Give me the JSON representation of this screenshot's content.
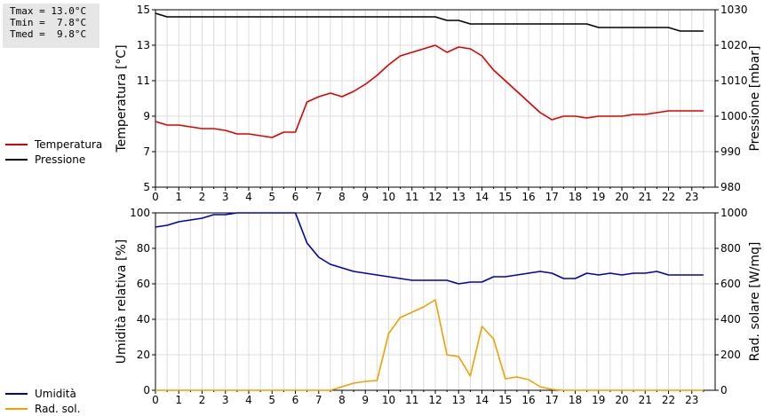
{
  "stats": {
    "tmax": "Tmax = 13.0°C",
    "tmin": "Tmin =  7.8°C",
    "tmed": "Tmed =  9.8°C"
  },
  "chart_data": [
    {
      "type": "line",
      "ylabel_left": "Temperatura [°C]",
      "ylabel_right": "Pressione [mbar]",
      "xlim": [
        0,
        24
      ],
      "ylim_left": [
        5,
        15
      ],
      "ylim_right": [
        980,
        1030
      ],
      "x_ticks": [
        "0",
        "1",
        "2",
        "3",
        "4",
        "5",
        "6",
        "7",
        "8",
        "9",
        "10",
        "11",
        "12",
        "13",
        "14",
        "15",
        "16",
        "17",
        "18",
        "19",
        "20",
        "21",
        "22",
        "23"
      ],
      "y_ticks_left": [
        "5",
        "7",
        "9",
        "11",
        "13",
        "15"
      ],
      "y_ticks_right": [
        "980",
        "990",
        "1000",
        "1010",
        "1020",
        "1030"
      ],
      "grid": true,
      "legend": "left",
      "series": [
        {
          "name": "Temperatura",
          "axis": "left",
          "color": "#dd0000",
          "x": [
            0,
            0.5,
            1,
            1.5,
            2,
            2.5,
            3,
            3.5,
            4,
            4.5,
            5,
            5.5,
            6,
            6.5,
            7,
            7.5,
            8,
            8.5,
            9,
            9.5,
            10,
            10.5,
            11,
            11.5,
            12,
            12.5,
            13,
            13.5,
            14,
            14.5,
            15,
            15.5,
            16,
            16.5,
            17,
            17.5,
            18,
            18.5,
            19,
            19.5,
            20,
            20.5,
            21,
            21.5,
            22,
            22.5,
            23,
            23.5
          ],
          "values": [
            8.7,
            8.5,
            8.5,
            8.4,
            8.3,
            8.3,
            8.2,
            8.0,
            8.0,
            7.9,
            7.8,
            8.1,
            8.1,
            9.8,
            10.1,
            10.3,
            10.1,
            10.4,
            10.8,
            11.3,
            11.9,
            12.4,
            12.6,
            12.8,
            13.0,
            12.6,
            12.9,
            12.8,
            12.4,
            11.6,
            11.0,
            10.4,
            9.8,
            9.2,
            8.8,
            9.0,
            9.0,
            8.9,
            9.0,
            9.0,
            9.0,
            9.1,
            9.1,
            9.2,
            9.3,
            9.3,
            9.3,
            9.3
          ]
        },
        {
          "name": "Pressione",
          "axis": "right",
          "color": "#000000",
          "x": [
            0,
            0.5,
            1,
            2,
            3,
            4,
            5,
            6,
            7,
            8,
            9,
            10,
            11,
            12,
            12.5,
            13,
            13.5,
            14,
            15,
            16,
            17,
            18,
            18.5,
            19,
            20,
            21,
            21.5,
            22,
            22.5,
            23,
            23.5
          ],
          "values": [
            1029,
            1028,
            1028,
            1028,
            1028,
            1028,
            1028,
            1028,
            1028,
            1028,
            1028,
            1028,
            1028,
            1028,
            1027,
            1027,
            1026,
            1026,
            1026,
            1026,
            1026,
            1026,
            1026,
            1025,
            1025,
            1025,
            1025,
            1025,
            1024,
            1024,
            1024
          ]
        }
      ]
    },
    {
      "type": "line",
      "ylabel_left": "Umidità relativa [%]",
      "ylabel_right": "Rad. solare [W/mq]",
      "xlim": [
        0,
        24
      ],
      "ylim_left": [
        0,
        100
      ],
      "ylim_right": [
        0,
        1000
      ],
      "x_ticks": [
        "0",
        "1",
        "2",
        "3",
        "4",
        "5",
        "6",
        "7",
        "8",
        "9",
        "10",
        "11",
        "12",
        "13",
        "14",
        "15",
        "16",
        "17",
        "18",
        "19",
        "20",
        "21",
        "22",
        "23"
      ],
      "y_ticks_left": [
        "0",
        "20",
        "40",
        "60",
        "80",
        "100"
      ],
      "y_ticks_right": [
        "0",
        "200",
        "400",
        "600",
        "800",
        "1000"
      ],
      "grid": true,
      "legend": "left",
      "series": [
        {
          "name": "Umidità",
          "axis": "left",
          "color": "#0000bb",
          "x": [
            0,
            0.5,
            1,
            1.5,
            2,
            2.5,
            3,
            3.5,
            4,
            4.5,
            5,
            5.5,
            6,
            6.5,
            7,
            7.5,
            8,
            8.5,
            9,
            9.5,
            10,
            10.5,
            11,
            11.5,
            12,
            12.5,
            13,
            13.5,
            14,
            14.5,
            15,
            15.5,
            16,
            16.5,
            17,
            17.5,
            18,
            18.5,
            19,
            19.5,
            20,
            20.5,
            21,
            21.5,
            22,
            22.5,
            23,
            23.5
          ],
          "values": [
            92,
            93,
            95,
            96,
            97,
            99,
            99,
            100,
            100,
            100,
            100,
            100,
            100,
            83,
            75,
            71,
            69,
            67,
            66,
            65,
            64,
            63,
            62,
            62,
            62,
            62,
            60,
            61,
            61,
            64,
            64,
            65,
            66,
            67,
            66,
            63,
            63,
            66,
            65,
            66,
            65,
            66,
            66,
            67,
            65,
            65,
            65,
            65
          ]
        },
        {
          "name": "Rad. sol.",
          "axis": "right",
          "color": "#f0a000",
          "x": [
            0,
            1,
            2,
            3,
            4,
            5,
            6,
            7,
            7.5,
            8,
            8.5,
            9,
            9.5,
            10,
            10.5,
            11,
            11.5,
            12,
            12.5,
            13,
            13.5,
            14,
            14.5,
            15,
            15.5,
            16,
            16.5,
            17,
            17.5,
            18,
            19,
            20,
            21,
            22,
            23,
            23.5
          ],
          "values": [
            0,
            0,
            0,
            0,
            0,
            0,
            0,
            0,
            0,
            20,
            40,
            50,
            55,
            320,
            410,
            440,
            470,
            510,
            200,
            190,
            80,
            360,
            290,
            65,
            75,
            60,
            20,
            5,
            0,
            0,
            0,
            0,
            0,
            0,
            0,
            0
          ]
        }
      ]
    }
  ]
}
